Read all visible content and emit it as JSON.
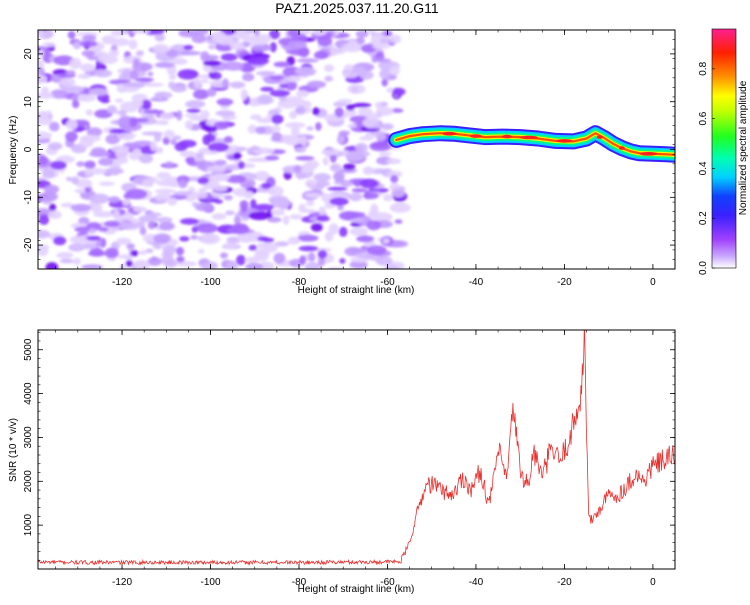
{
  "title": "PAZ1.2025.037.11.20.G11",
  "colors": {
    "snr_line": "#e8312f",
    "noise": "#a56bff",
    "noise_light": "#d9c2ff",
    "ridge_core": "#ff1f1f"
  },
  "chart_data": [
    {
      "type": "heatmap",
      "name": "spectrogram",
      "xlabel": "Height of straight line (km)",
      "ylabel": "Frequency (Hz)",
      "xlim": [
        -139,
        5
      ],
      "ylim": [
        -25,
        25
      ],
      "xticks": [
        -120,
        -100,
        -80,
        -60,
        -40,
        -20,
        0
      ],
      "xtick_labels": [
        "-120",
        "-100",
        "-80",
        "-60",
        "-40",
        "-20",
        "0"
      ],
      "yticks": [
        -20,
        -10,
        0,
        10,
        20
      ],
      "ytick_labels": [
        "-20",
        "-10",
        "0",
        "10",
        "20"
      ],
      "noise_region_x": [
        -139,
        -57
      ],
      "ridge": {
        "x": [
          -58,
          -55,
          -52,
          -48,
          -45,
          -42,
          -38,
          -34,
          -30,
          -26,
          -22,
          -18,
          -15,
          -13,
          -11,
          -9,
          -7,
          -5,
          -3,
          0,
          3,
          5
        ],
        "y": [
          2.0,
          2.8,
          3.2,
          3.4,
          3.3,
          3.0,
          2.6,
          2.7,
          2.6,
          2.3,
          1.8,
          1.7,
          2.3,
          3.4,
          2.4,
          1.2,
          0.3,
          -0.4,
          -0.8,
          -0.9,
          -1.0,
          -1.1
        ]
      },
      "colorbar": {
        "label": "Normalized spectral amplitude",
        "ticks": [
          0.0,
          0.2,
          0.4,
          0.6,
          0.8
        ],
        "tick_labels": [
          "0.0",
          "0.2",
          "0.4",
          "0.6",
          "0.8"
        ],
        "range": [
          0,
          0.96
        ],
        "colors": [
          "#ffffff",
          "#a040ff",
          "#2020ff",
          "#00e5ff",
          "#00ff40",
          "#ffff00",
          "#ff8000",
          "#ff0000",
          "#ff2090"
        ]
      }
    },
    {
      "type": "line",
      "name": "snr",
      "xlabel": "Height of straight line (km)",
      "ylabel": "SNR (10 * v/v)",
      "xlim": [
        -139,
        5
      ],
      "ylim": [
        0,
        5450
      ],
      "xticks": [
        -120,
        -100,
        -80,
        -60,
        -40,
        -20,
        0
      ],
      "xtick_labels": [
        "-120",
        "-100",
        "-80",
        "-60",
        "-40",
        "-20",
        "0"
      ],
      "yticks": [
        1000,
        2000,
        3000,
        4000,
        5000
      ],
      "ytick_labels": [
        "1000",
        "2000",
        "3000",
        "4000",
        "5000"
      ],
      "x": [
        -139,
        -130,
        -120,
        -100,
        -80,
        -62,
        -57,
        -55,
        -53,
        -51,
        -49,
        -47,
        -45,
        -43,
        -41,
        -39,
        -37,
        -35,
        -33,
        -31.5,
        -30,
        -28,
        -27,
        -25,
        -23,
        -21,
        -19,
        -17,
        -16,
        -15.5,
        -15,
        -14.5,
        -14,
        -12,
        -10,
        -8,
        -6,
        -4,
        -2,
        0,
        2,
        5
      ],
      "values": [
        160,
        150,
        150,
        150,
        150,
        160,
        170,
        600,
        1400,
        1950,
        1900,
        1750,
        1700,
        2100,
        1800,
        2250,
        1450,
        2700,
        2050,
        3750,
        2200,
        1900,
        2700,
        2100,
        2750,
        2450,
        2950,
        3600,
        4300,
        5400,
        3300,
        1150,
        1100,
        1350,
        1700,
        1650,
        1900,
        2150,
        2000,
        2350,
        2450,
        2600
      ]
    }
  ]
}
